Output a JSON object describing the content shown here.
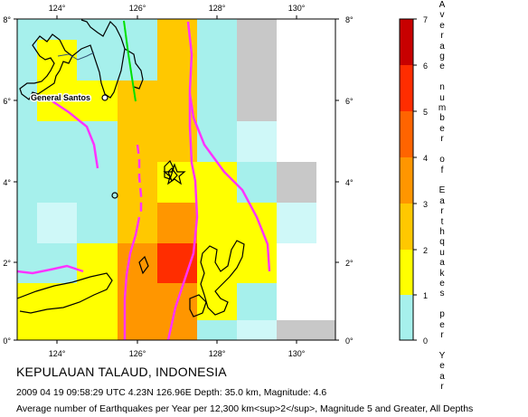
{
  "map": {
    "lon_ticks": [
      "124°",
      "126°",
      "128°",
      "130°"
    ],
    "lat_ticks_left": [
      "8°",
      "6°",
      "4°",
      "2°",
      "0°"
    ],
    "lat_ticks_right": [
      "8°",
      "6°",
      "4°",
      "2°",
      "0°"
    ],
    "city_label": "General Santos",
    "colors": {
      "c0": "#c8c8c8",
      "c1": "#a6f0ec",
      "c1b": "#cff8f8",
      "c2": "#ffff00",
      "c3": "#ffc800",
      "c4": "#ff9600",
      "c5": "#ff6400",
      "c6": "#ff2d00",
      "c7": "#c80000",
      "fault": "#ff33ff",
      "green_line": "#00e000"
    }
  },
  "legend": {
    "ticks": [
      "7",
      "6",
      "5",
      "4",
      "3",
      "2",
      "1",
      "0"
    ],
    "title_letters": "Average number of Earthquakes per Year"
  },
  "caption": {
    "region": "KEPULAUAN TALAUD, INDONESIA",
    "event": "2009 04 19 09:58:29 UTC 4.23N 126.96E Depth: 35.0 km, Magnitude: 4.6",
    "description": "Average number of Earthquakes per Year per 12,300 km<sup>2</sup>, Magnitude 5 and Greater, All Depths"
  }
}
